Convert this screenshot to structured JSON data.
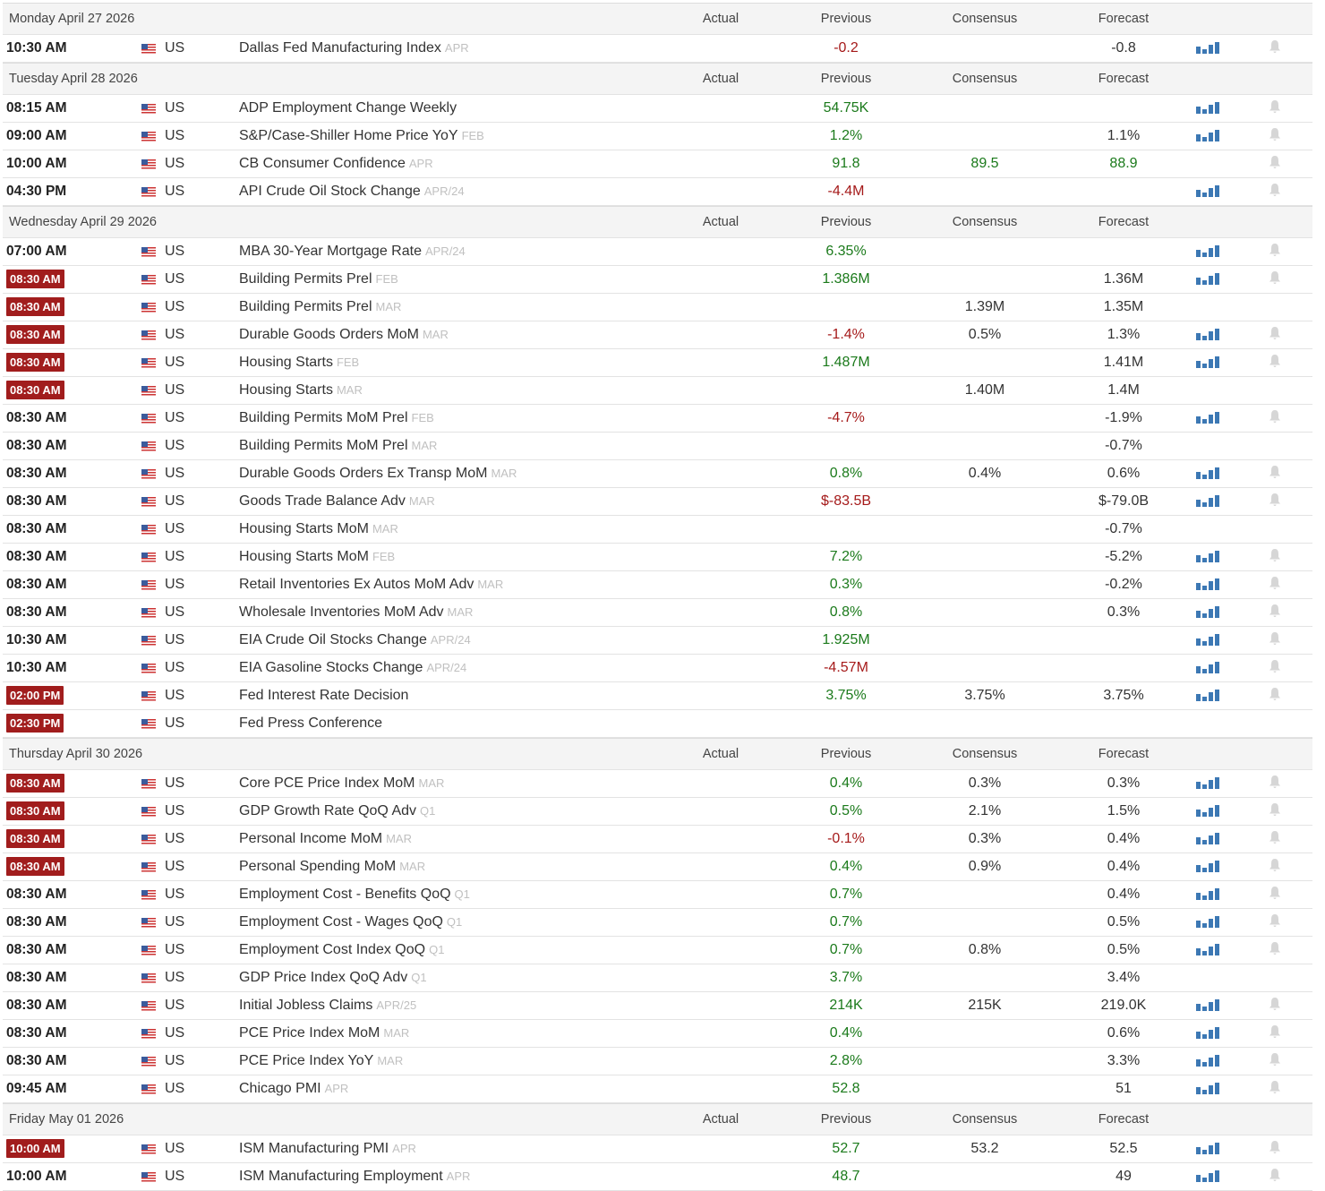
{
  "columns": [
    "Actual",
    "Previous",
    "Consensus",
    "Forecast"
  ],
  "days": [
    {
      "date": "Monday April 27 2026",
      "events": [
        {
          "time": "10:30 AM",
          "country": "US",
          "event": "Dallas Fed Manufacturing Index",
          "period": "APR",
          "previous": "-0.2",
          "forecast": "-0.8",
          "chart": true,
          "alert": true
        }
      ]
    },
    {
      "date": "Tuesday April 28 2026",
      "events": [
        {
          "time": "08:15 AM",
          "country": "US",
          "event": "ADP Employment Change Weekly",
          "previous": "54.75K",
          "chart": true,
          "alert": true
        },
        {
          "time": "09:00 AM",
          "country": "US",
          "event": "S&P/Case-Shiller Home Price YoY",
          "period": "FEB",
          "previous": "1.2%",
          "forecast": "1.1%",
          "chart": true,
          "alert": true
        },
        {
          "time": "10:00 AM",
          "country": "US",
          "event": "CB Consumer Confidence",
          "period": "APR",
          "previous": "91.8",
          "consensus": "89.5",
          "forecast": "88.9",
          "consensus_green": true,
          "forecast_green": true,
          "alert": true
        },
        {
          "time": "04:30 PM",
          "country": "US",
          "event": "API Crude Oil Stock Change",
          "period": "APR/24",
          "previous": "-4.4M",
          "chart": true,
          "alert": true
        }
      ]
    },
    {
      "date": "Wednesday April 29 2026",
      "events": [
        {
          "time": "07:00 AM",
          "country": "US",
          "event": "MBA 30-Year Mortgage Rate",
          "period": "APR/24",
          "previous": "6.35%",
          "chart": true,
          "alert": true
        },
        {
          "time": "08:30 AM",
          "important": true,
          "country": "US",
          "event": "Building Permits Prel",
          "period": "FEB",
          "previous": "1.386M",
          "forecast": "1.36M",
          "chart": true,
          "alert": true
        },
        {
          "time": "08:30 AM",
          "important": true,
          "country": "US",
          "event": "Building Permits Prel",
          "period": "MAR",
          "consensus": "1.39M",
          "forecast": "1.35M"
        },
        {
          "time": "08:30 AM",
          "important": true,
          "country": "US",
          "event": "Durable Goods Orders MoM",
          "period": "MAR",
          "previous": "-1.4%",
          "consensus": "0.5%",
          "forecast": "1.3%",
          "chart": true,
          "alert": true
        },
        {
          "time": "08:30 AM",
          "important": true,
          "country": "US",
          "event": "Housing Starts",
          "period": "FEB",
          "previous": "1.487M",
          "forecast": "1.41M",
          "chart": true,
          "alert": true
        },
        {
          "time": "08:30 AM",
          "important": true,
          "country": "US",
          "event": "Housing Starts",
          "period": "MAR",
          "consensus": "1.40M",
          "forecast": "1.4M"
        },
        {
          "time": "08:30 AM",
          "country": "US",
          "event": "Building Permits MoM Prel",
          "period": "FEB",
          "previous": "-4.7%",
          "forecast": "-1.9%",
          "chart": true,
          "alert": true
        },
        {
          "time": "08:30 AM",
          "country": "US",
          "event": "Building Permits MoM Prel",
          "period": "MAR",
          "forecast": "-0.7%"
        },
        {
          "time": "08:30 AM",
          "country": "US",
          "event": "Durable Goods Orders Ex Transp MoM",
          "period": "MAR",
          "previous": "0.8%",
          "consensus": "0.4%",
          "forecast": "0.6%",
          "chart": true,
          "alert": true
        },
        {
          "time": "08:30 AM",
          "country": "US",
          "event": "Goods Trade Balance Adv",
          "period": "MAR",
          "previous": "$-83.5B",
          "forecast": "$-79.0B",
          "chart": true,
          "alert": true
        },
        {
          "time": "08:30 AM",
          "country": "US",
          "event": "Housing Starts MoM",
          "period": "MAR",
          "forecast": "-0.7%"
        },
        {
          "time": "08:30 AM",
          "country": "US",
          "event": "Housing Starts MoM",
          "period": "FEB",
          "previous": "7.2%",
          "forecast": "-5.2%",
          "chart": true,
          "alert": true
        },
        {
          "time": "08:30 AM",
          "country": "US",
          "event": "Retail Inventories Ex Autos MoM Adv",
          "period": "MAR",
          "previous": "0.3%",
          "forecast": "-0.2%",
          "chart": true,
          "alert": true
        },
        {
          "time": "08:30 AM",
          "country": "US",
          "event": "Wholesale Inventories MoM Adv",
          "period": "MAR",
          "previous": "0.8%",
          "forecast": "0.3%",
          "chart": true,
          "alert": true
        },
        {
          "time": "10:30 AM",
          "country": "US",
          "event": "EIA Crude Oil Stocks Change",
          "period": "APR/24",
          "previous": "1.925M",
          "chart": true,
          "alert": true
        },
        {
          "time": "10:30 AM",
          "country": "US",
          "event": "EIA Gasoline Stocks Change",
          "period": "APR/24",
          "previous": "-4.57M",
          "chart": true,
          "alert": true
        },
        {
          "time": "02:00 PM",
          "important": true,
          "country": "US",
          "event": "Fed Interest Rate Decision",
          "previous": "3.75%",
          "consensus": "3.75%",
          "forecast": "3.75%",
          "chart": true,
          "alert": true
        },
        {
          "time": "02:30 PM",
          "important": true,
          "country": "US",
          "event": "Fed Press Conference"
        }
      ]
    },
    {
      "date": "Thursday April 30 2026",
      "events": [
        {
          "time": "08:30 AM",
          "important": true,
          "country": "US",
          "event": "Core PCE Price Index MoM",
          "period": "MAR",
          "previous": "0.4%",
          "consensus": "0.3%",
          "forecast": "0.3%",
          "chart": true,
          "alert": true
        },
        {
          "time": "08:30 AM",
          "important": true,
          "country": "US",
          "event": "GDP Growth Rate QoQ Adv",
          "period": "Q1",
          "previous": "0.5%",
          "consensus": "2.1%",
          "forecast": "1.5%",
          "chart": true,
          "alert": true
        },
        {
          "time": "08:30 AM",
          "important": true,
          "country": "US",
          "event": "Personal Income MoM",
          "period": "MAR",
          "previous": "-0.1%",
          "consensus": "0.3%",
          "forecast": "0.4%",
          "chart": true,
          "alert": true
        },
        {
          "time": "08:30 AM",
          "important": true,
          "country": "US",
          "event": "Personal Spending MoM",
          "period": "MAR",
          "previous": "0.4%",
          "consensus": "0.9%",
          "forecast": "0.4%",
          "chart": true,
          "alert": true
        },
        {
          "time": "08:30 AM",
          "country": "US",
          "event": "Employment Cost - Benefits QoQ",
          "period": "Q1",
          "previous": "0.7%",
          "forecast": "0.4%",
          "chart": true,
          "alert": true
        },
        {
          "time": "08:30 AM",
          "country": "US",
          "event": "Employment Cost - Wages QoQ",
          "period": "Q1",
          "previous": "0.7%",
          "forecast": "0.5%",
          "chart": true,
          "alert": true
        },
        {
          "time": "08:30 AM",
          "country": "US",
          "event": "Employment Cost Index QoQ",
          "period": "Q1",
          "previous": "0.7%",
          "consensus": "0.8%",
          "forecast": "0.5%",
          "chart": true,
          "alert": true
        },
        {
          "time": "08:30 AM",
          "country": "US",
          "event": "GDP Price Index QoQ Adv",
          "period": "Q1",
          "previous": "3.7%",
          "forecast": "3.4%"
        },
        {
          "time": "08:30 AM",
          "country": "US",
          "event": "Initial Jobless Claims",
          "period": "APR/25",
          "previous": "214K",
          "consensus": "215K",
          "forecast": "219.0K",
          "chart": true,
          "alert": true
        },
        {
          "time": "08:30 AM",
          "country": "US",
          "event": "PCE Price Index MoM",
          "period": "MAR",
          "previous": "0.4%",
          "forecast": "0.6%",
          "chart": true,
          "alert": true
        },
        {
          "time": "08:30 AM",
          "country": "US",
          "event": "PCE Price Index YoY",
          "period": "MAR",
          "previous": "2.8%",
          "forecast": "3.3%",
          "chart": true,
          "alert": true
        },
        {
          "time": "09:45 AM",
          "country": "US",
          "event": "Chicago PMI",
          "period": "APR",
          "previous": "52.8",
          "forecast": "51",
          "chart": true,
          "alert": true
        }
      ]
    },
    {
      "date": "Friday May 01 2026",
      "events": [
        {
          "time": "10:00 AM",
          "important": true,
          "country": "US",
          "event": "ISM Manufacturing PMI",
          "period": "APR",
          "previous": "52.7",
          "consensus": "53.2",
          "forecast": "52.5",
          "chart": true,
          "alert": true
        },
        {
          "time": "10:00 AM",
          "country": "US",
          "event": "ISM Manufacturing Employment",
          "period": "APR",
          "previous": "48.7",
          "forecast": "49",
          "chart": true,
          "alert": true
        }
      ]
    }
  ]
}
